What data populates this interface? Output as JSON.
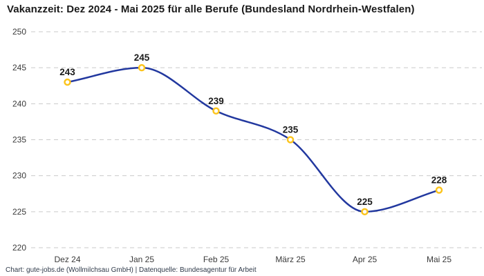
{
  "title": "Vakanzzeit: Dez 2024 - Mai 2025 für alle Berufe (Bundesland Nordrhein-Westfalen)",
  "footer": "Chart: gute-jobs.de (Wollmilchsau GmbH) | Datenquelle: Bundesagentur für Arbeit",
  "chart_data": {
    "type": "line",
    "title": "Vakanzzeit: Dez 2024 - Mai 2025 für alle Berufe (Bundesland Nordrhein-Westfalen)",
    "categories": [
      "Dez 24",
      "Jan 25",
      "Feb 25",
      "März 25",
      "Apr 25",
      "Mai 25"
    ],
    "values": [
      243,
      245,
      239,
      235,
      225,
      228
    ],
    "value_labels": [
      "243",
      "245",
      "239",
      "235",
      "225",
      "228"
    ],
    "xlabel": "",
    "ylabel": "",
    "ylim": [
      220,
      250
    ],
    "yticks": [
      220,
      225,
      230,
      235,
      240,
      245,
      250
    ],
    "grid": true,
    "grid_style": "dashed",
    "legend": false,
    "colors": {
      "line": "#22389f",
      "marker_ring": "#fcc41d",
      "marker_fill": "#ffffff",
      "grid": "#c9c9c9",
      "axis_label": "#3a3a3a",
      "value_label": "#1a1a1a",
      "title": "#1a1a1a",
      "footer": "#2f3a4a",
      "background": "#ffffff"
    }
  }
}
